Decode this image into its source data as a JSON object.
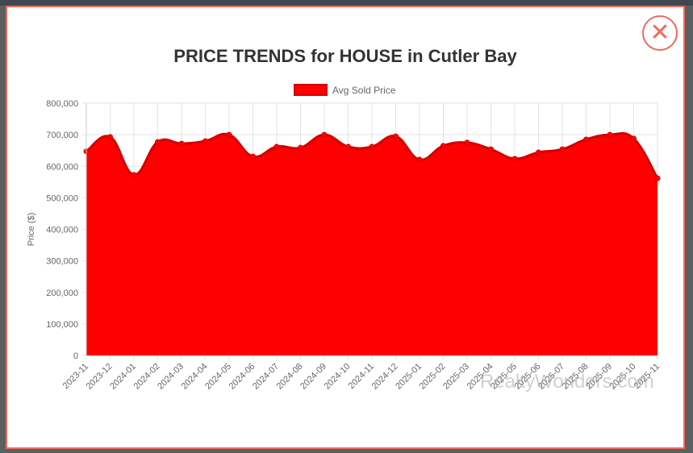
{
  "modal": {
    "title": "PRICE TRENDS for HOUSE in Cutler Bay",
    "close_icon": "close-x-circle-icon",
    "watermark": "RealtyWonders.com"
  },
  "chart_data": {
    "type": "area",
    "title": "PRICE TRENDS for HOUSE in Cutler Bay",
    "xlabel": "",
    "ylabel": "Price ($)",
    "ylim": [
      0,
      800000
    ],
    "yticks": [
      "0",
      "100,000",
      "200,000",
      "300,000",
      "400,000",
      "500,000",
      "600,000",
      "700,000",
      "800,000"
    ],
    "grid": true,
    "legend": "top-center",
    "categories": [
      "2023-11",
      "2023-12",
      "2024-01",
      "2024-02",
      "2024-03",
      "2024-04",
      "2024-05",
      "2024-06",
      "2024-07",
      "2024-08",
      "2024-09",
      "2024-10",
      "2024-11",
      "2024-12",
      "2025-01",
      "2025-02",
      "2025-03",
      "2025-04",
      "2025-05",
      "2025-06",
      "2025-07",
      "2025-08",
      "2025-09",
      "2025-10",
      "2025-11"
    ],
    "series": [
      {
        "name": "Avg Sold Price",
        "color": "#ff0000",
        "values": [
          647000,
          693000,
          573000,
          677000,
          672000,
          680000,
          700000,
          631000,
          662000,
          659000,
          700000,
          662000,
          662000,
          695000,
          621000,
          665000,
          675000,
          654000,
          624000,
          644000,
          654000,
          685000,
          700000,
          688000,
          562000
        ]
      }
    ]
  }
}
